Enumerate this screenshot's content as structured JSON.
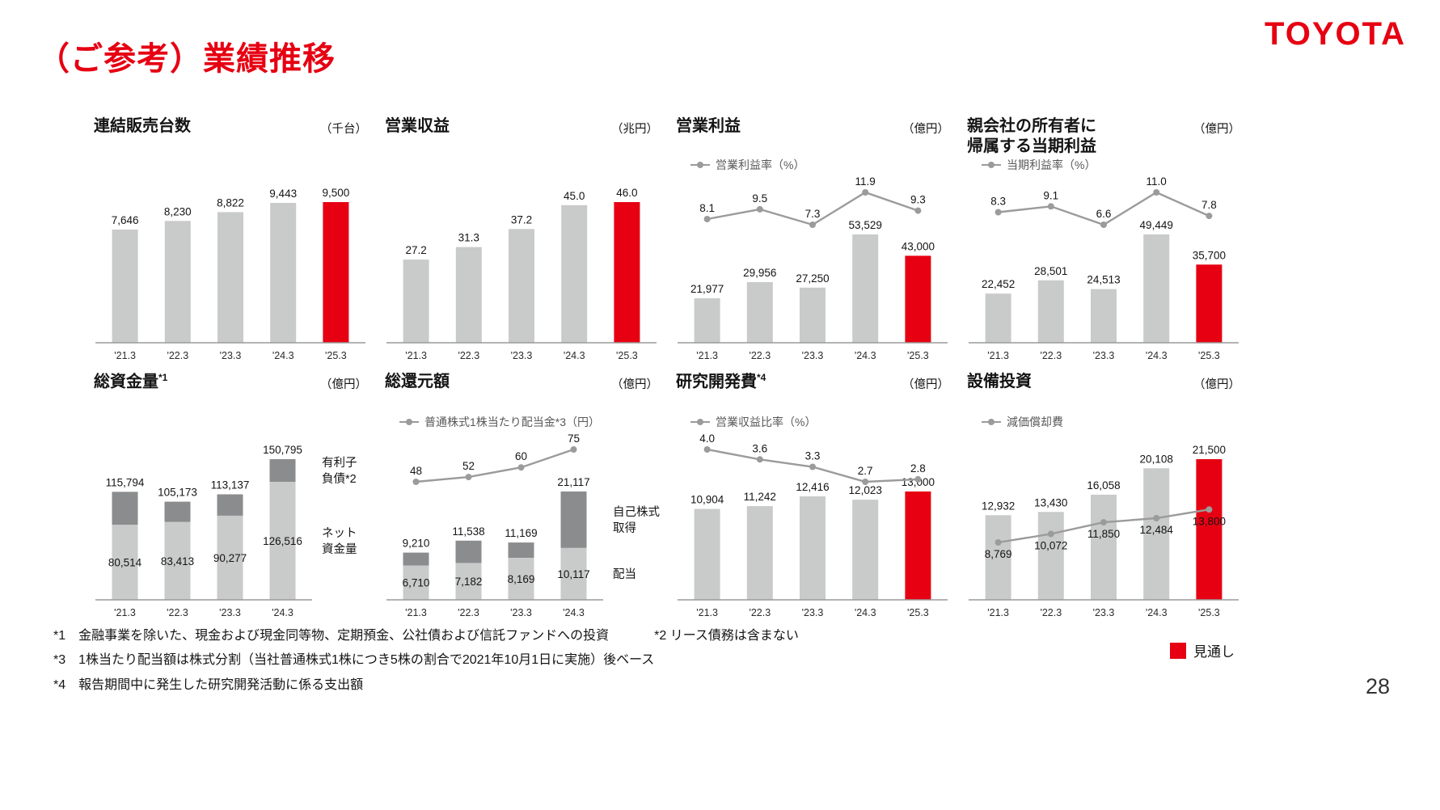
{
  "page": {
    "title": "（ご参考）業績推移",
    "logo": "TOYOTA",
    "page_number": "28"
  },
  "legend": {
    "forecast_label": "見通し"
  },
  "footnotes": [
    "*1　金融事業を除いた、現金および現金同等物、定期預金、公社債および信託ファンドへの投資",
    "*2 リース債務は含まない",
    "*3　1株当たり配当額は株式分割（当社普通株式1株につき5株の割合で2021年10月1日に実施）後ベース",
    "*4　報告期間中に発生した研究開発活動に係る支出額"
  ],
  "colors": {
    "red": "#e60012",
    "bar_light": "#c9caca",
    "bar_dark": "#8a8c8d",
    "line": "#9b9b9b"
  },
  "chart_data": [
    {
      "id": "unit-sales",
      "type": "bar",
      "title": "連結販売台数",
      "unit": "（千台）",
      "categories": [
        "'21.3",
        "'22.3",
        "'23.3",
        "'24.3",
        "'25.3"
      ],
      "values": [
        7646,
        8230,
        8822,
        9443,
        9500
      ],
      "value_labels": [
        "7,646",
        "8,230",
        "8,822",
        "9,443",
        "9,500"
      ],
      "forecast_last": true,
      "ylim": [
        0,
        9500
      ],
      "grid": false
    },
    {
      "id": "revenue",
      "type": "bar",
      "title": "営業収益",
      "unit": "（兆円）",
      "categories": [
        "'21.3",
        "'22.3",
        "'23.3",
        "'24.3",
        "'25.3"
      ],
      "values": [
        27.2,
        31.3,
        37.2,
        45.0,
        46.0
      ],
      "value_labels": [
        "27.2",
        "31.3",
        "37.2",
        "45.0",
        "46.0"
      ],
      "forecast_last": true,
      "ylim": [
        0,
        46
      ],
      "grid": false
    },
    {
      "id": "operating-income",
      "type": "bar",
      "title": "営業利益",
      "unit": "（億円）",
      "categories": [
        "'21.3",
        "'22.3",
        "'23.3",
        "'24.3",
        "'25.3"
      ],
      "values": [
        21977,
        29956,
        27250,
        53529,
        43000
      ],
      "value_labels": [
        "21,977",
        "29,956",
        "27,250",
        "53,529",
        "43,000"
      ],
      "forecast_last": true,
      "line": {
        "legend": "営業利益率（%）",
        "values": [
          8.1,
          9.5,
          7.3,
          11.9,
          9.3
        ],
        "labels": [
          "8.1",
          "9.5",
          "7.3",
          "11.9",
          "9.3"
        ],
        "same_scale": false,
        "label_position": "above"
      },
      "ylim": [
        0,
        53529
      ],
      "grid": false
    },
    {
      "id": "net-income",
      "type": "bar",
      "title": "親会社の所有者に",
      "title2": "帰属する当期利益",
      "unit": "（億円）",
      "categories": [
        "'21.3",
        "'22.3",
        "'23.3",
        "'24.3",
        "'25.3"
      ],
      "values": [
        22452,
        28501,
        24513,
        49449,
        35700
      ],
      "value_labels": [
        "22,452",
        "28,501",
        "24,513",
        "49,449",
        "35,700"
      ],
      "forecast_last": true,
      "line": {
        "legend": "当期利益率（%）",
        "values": [
          8.3,
          9.1,
          6.6,
          11.0,
          7.8
        ],
        "labels": [
          "8.3",
          "9.1",
          "6.6",
          "11.0",
          "7.8"
        ],
        "same_scale": false,
        "label_position": "above"
      },
      "ylim": [
        0,
        49449
      ],
      "grid": false
    },
    {
      "id": "total-funds",
      "type": "stacked",
      "title": "総資金量",
      "title_sup": "*1",
      "unit": "（億円）",
      "categories": [
        "'21.3",
        "'22.3",
        "'23.3",
        "'24.3"
      ],
      "stack": {
        "bottom": {
          "name": "ネット資金量",
          "values": [
            80514,
            83413,
            90277,
            126516
          ],
          "labels": [
            "80,514",
            "83,413",
            "90,277",
            "126,516"
          ]
        },
        "top": {
          "name": "有利子負債*2",
          "values": [
            35280,
            21760,
            22860,
            24279
          ]
        }
      },
      "total_labels": [
        "115,794",
        "105,173",
        "113,137",
        "150,795"
      ],
      "side_labels": {
        "top": [
          "有利子",
          "負債*2"
        ],
        "bottom": [
          "ネット",
          "資金量"
        ]
      },
      "ylim": [
        0,
        150795
      ],
      "grid": false
    },
    {
      "id": "total-shareholder-returns",
      "type": "stacked",
      "title": "総還元額",
      "unit": "（億円）",
      "categories": [
        "'21.3",
        "'22.3",
        "'23.3",
        "'24.3"
      ],
      "stack": {
        "bottom": {
          "name": "配当",
          "values": [
            6710,
            7182,
            8169,
            10117
          ],
          "labels": [
            "6,710",
            "7,182",
            "8,169",
            "10,117"
          ]
        },
        "top": {
          "name": "自己株式取得",
          "values": [
            2500,
            4356,
            3000,
            11000
          ]
        }
      },
      "total_labels": [
        "9,210",
        "11,538",
        "11,169",
        "21,117"
      ],
      "side_labels": {
        "top": [
          "自己株式",
          "取得"
        ],
        "bottom": [
          "配当"
        ]
      },
      "line": {
        "legend": "普通株式1株当たり配当金*3（円）",
        "values": [
          48,
          52,
          60,
          75
        ],
        "labels": [
          "48",
          "52",
          "60",
          "75"
        ],
        "same_scale": false,
        "label_position": "above"
      },
      "ylim": [
        0,
        21117
      ],
      "grid": false
    },
    {
      "id": "rd-expenses",
      "type": "bar",
      "title": "研究開発費",
      "title_sup": "*4",
      "unit": "（億円）",
      "categories": [
        "'21.3",
        "'22.3",
        "'23.3",
        "'24.3",
        "'25.3"
      ],
      "values": [
        10904,
        11242,
        12416,
        12023,
        13000
      ],
      "value_labels": [
        "10,904",
        "11,242",
        "12,416",
        "12,023",
        "13,000"
      ],
      "forecast_last": true,
      "line": {
        "legend": "営業収益比率（%）",
        "values": [
          4.0,
          3.6,
          3.3,
          2.7,
          2.8
        ],
        "labels": [
          "4.0",
          "3.6",
          "3.3",
          "2.7",
          "2.8"
        ],
        "same_scale": false,
        "label_position": "above"
      },
      "ylim": [
        0,
        13000
      ],
      "grid": false
    },
    {
      "id": "capital-expenditure",
      "type": "bar",
      "title": "設備投資",
      "unit": "（億円）",
      "categories": [
        "'21.3",
        "'22.3",
        "'23.3",
        "'24.3",
        "'25.3"
      ],
      "values": [
        12932,
        13430,
        16058,
        20108,
        21500
      ],
      "value_labels": [
        "12,932",
        "13,430",
        "16,058",
        "20,108",
        "21,500"
      ],
      "forecast_last": true,
      "line": {
        "legend": "減価償却費",
        "values": [
          8769,
          10072,
          11850,
          12484,
          13800
        ],
        "labels": [
          "8,769",
          "10,072",
          "11,850",
          "12,484",
          "13,800"
        ],
        "same_scale": true,
        "label_position": "below"
      },
      "ylim": [
        0,
        21500
      ],
      "grid": false
    }
  ]
}
